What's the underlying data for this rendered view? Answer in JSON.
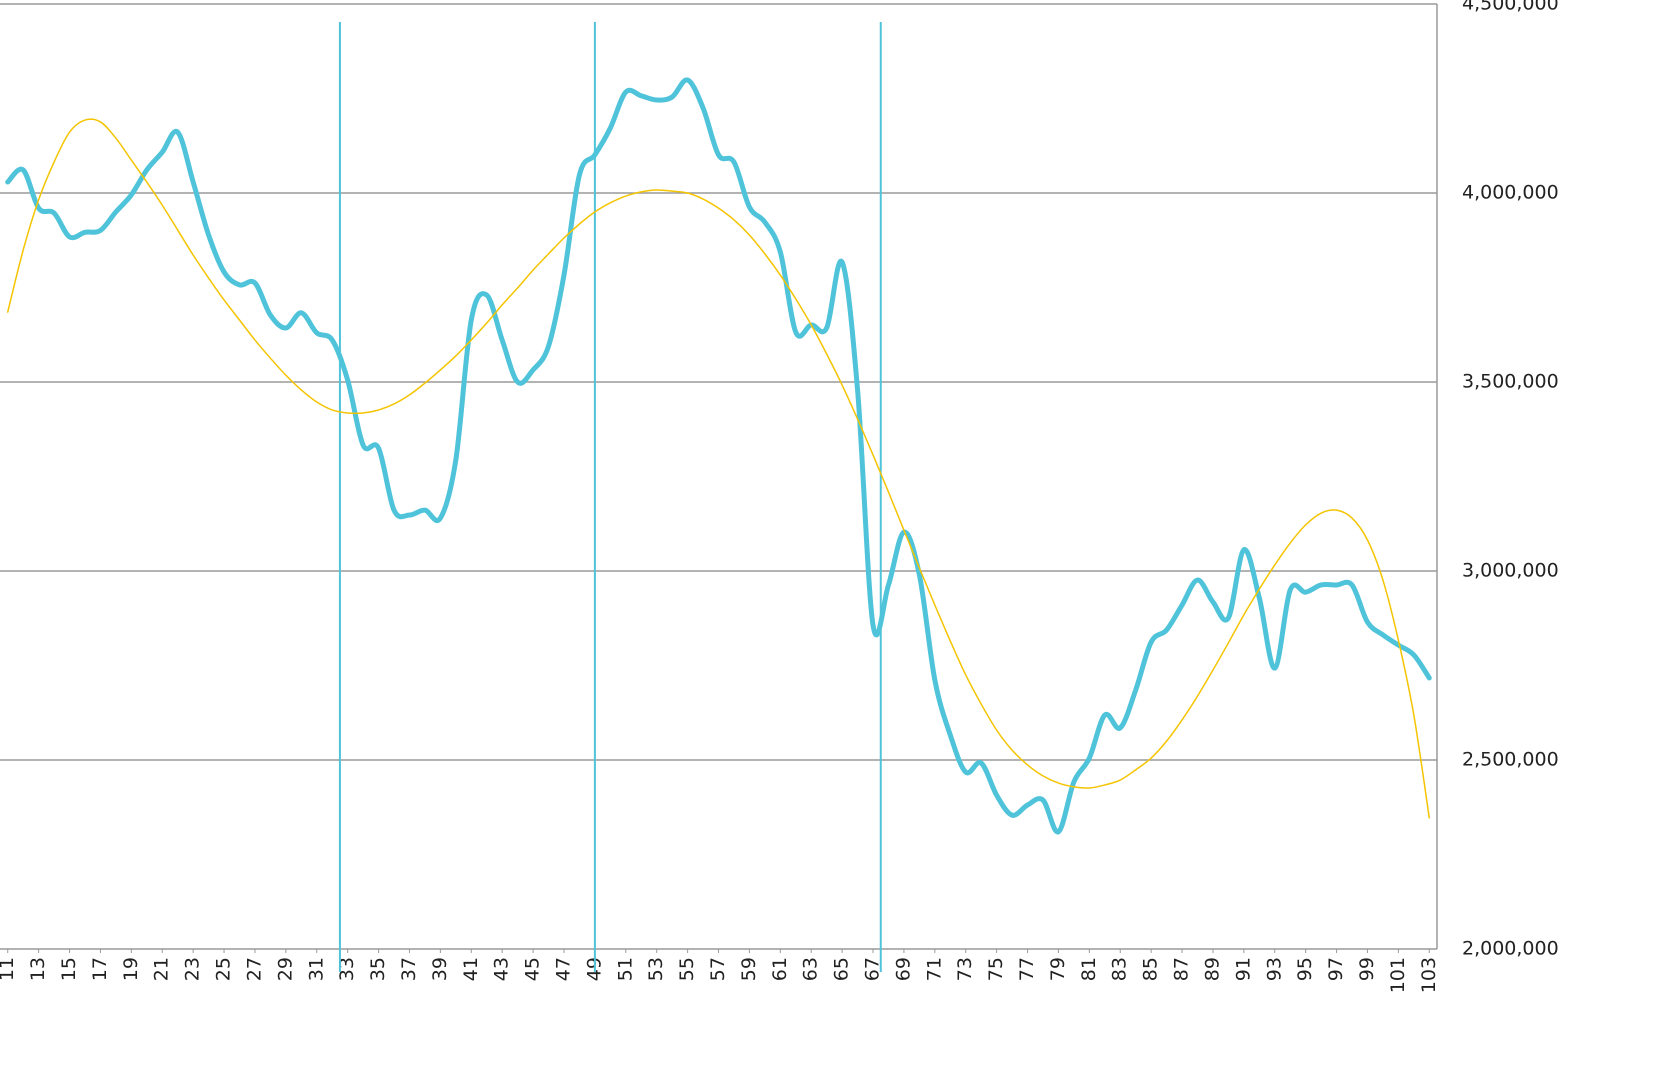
{
  "chart_data": {
    "type": "line",
    "x": [
      11,
      12,
      13,
      14,
      15,
      16,
      17,
      18,
      19,
      20,
      21,
      22,
      23,
      24,
      25,
      26,
      27,
      28,
      29,
      30,
      31,
      32,
      33,
      34,
      35,
      36,
      37,
      38,
      39,
      40,
      41,
      42,
      43,
      44,
      45,
      46,
      47,
      48,
      49,
      50,
      51,
      52,
      53,
      54,
      55,
      56,
      57,
      58,
      59,
      60,
      61,
      62,
      63,
      64,
      65,
      66,
      67,
      68,
      69,
      70,
      71,
      72,
      73,
      74,
      75,
      76,
      77,
      78,
      79,
      80,
      81,
      82,
      83,
      84,
      85,
      86,
      87,
      88,
      89,
      90,
      91,
      92,
      93,
      94,
      95,
      96,
      97,
      98,
      99,
      100,
      101,
      102,
      103
    ],
    "series": [
      {
        "color": "#4fc3d9",
        "width": 5,
        "values": [
          4029000,
          4061000,
          3960000,
          3947000,
          3884000,
          3896000,
          3901000,
          3950000,
          3995000,
          4061000,
          4108000,
          4161000,
          4029000,
          3889000,
          3791000,
          3757000,
          3762000,
          3677000,
          3643000,
          3683000,
          3630000,
          3611000,
          3505000,
          3333000,
          3325000,
          3161000,
          3148000,
          3161000,
          3140000,
          3294000,
          3664000,
          3730000,
          3611000,
          3500000,
          3532000,
          3595000,
          3783000,
          4048000,
          4101000,
          4172000,
          4267000,
          4257000,
          4246000,
          4254000,
          4299000,
          4225000,
          4101000,
          4082000,
          3963000,
          3923000,
          3844000,
          3632000,
          3651000,
          3643000,
          3817000,
          3479000,
          2857000,
          2963000,
          3103000,
          2990000,
          2712000,
          2566000,
          2468000,
          2492000,
          2407000,
          2354000,
          2381000,
          2394000,
          2310000,
          2442000,
          2505000,
          2619000,
          2585000,
          2685000,
          2812000,
          2844000,
          2910000,
          2976000,
          2918000,
          2876000,
          3056000,
          2929000,
          2743000,
          2950000,
          2944000,
          2963000,
          2963000,
          2963000,
          2865000,
          2831000,
          2804000,
          2778000,
          2717000
        ]
      },
      {
        "color": "#f5c400",
        "width": 1.5,
        "values": [
          3685000,
          3849000,
          3982000,
          4082000,
          4161000,
          4193000,
          4188000,
          4145000,
          4087000,
          4029000,
          3968000,
          3902000,
          3836000,
          3775000,
          3717000,
          3664000,
          3611000,
          3563000,
          3518000,
          3479000,
          3447000,
          3426000,
          3418000,
          3418000,
          3426000,
          3442000,
          3466000,
          3497000,
          3532000,
          3569000,
          3611000,
          3656000,
          3704000,
          3749000,
          3796000,
          3839000,
          3881000,
          3918000,
          3950000,
          3974000,
          3992000,
          4003000,
          4008000,
          4005000,
          4000000,
          3984000,
          3960000,
          3929000,
          3889000,
          3839000,
          3783000,
          3720000,
          3651000,
          3574000,
          3492000,
          3402000,
          3307000,
          3209000,
          3108000,
          3008000,
          2910000,
          2815000,
          2725000,
          2648000,
          2579000,
          2526000,
          2487000,
          2458000,
          2439000,
          2429000,
          2426000,
          2434000,
          2447000,
          2474000,
          2505000,
          2550000,
          2606000,
          2669000,
          2738000,
          2810000,
          2884000,
          2952000,
          3016000,
          3074000,
          3122000,
          3153000,
          3161000,
          3140000,
          3082000,
          2976000,
          2817000,
          2619000,
          2347000
        ]
      }
    ],
    "xlim": [
      10.5,
      103.5
    ],
    "xticks": [
      11,
      13,
      15,
      17,
      19,
      21,
      23,
      25,
      27,
      29,
      31,
      33,
      35,
      37,
      39,
      41,
      43,
      45,
      47,
      49,
      51,
      53,
      55,
      57,
      59,
      61,
      63,
      65,
      67,
      69,
      71,
      73,
      75,
      77,
      79,
      81,
      83,
      85,
      87,
      89,
      91,
      93,
      95,
      97,
      99,
      101,
      103
    ],
    "ylim": [
      2000000,
      4500000
    ],
    "yticks": [
      {
        "value": 2000000,
        "label": "2,000,000"
      },
      {
        "value": 2500000,
        "label": "2,500,000"
      },
      {
        "value": 3000000,
        "label": "3,000,000"
      },
      {
        "value": 3500000,
        "label": "3,500,000"
      },
      {
        "value": 4000000,
        "label": "4,000,000"
      },
      {
        "value": 4500000,
        "label": "4,500,000"
      }
    ],
    "grid": true,
    "vlines": [
      32.5,
      49,
      67.5
    ],
    "vline_color": "#4fc3d9"
  }
}
